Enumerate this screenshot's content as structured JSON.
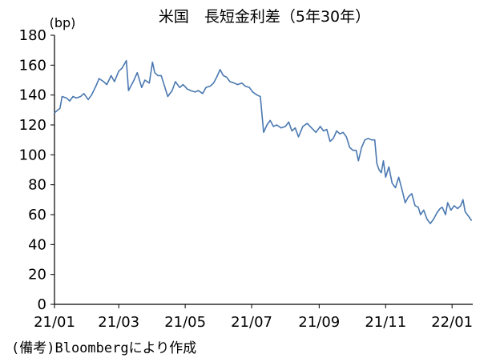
{
  "chart_data": {
    "type": "line",
    "title": "米国　長短金利差（5年30年）",
    "ylabel": "(bp)",
    "note": "(備考)Bloombergにより作成",
    "ylim": [
      0,
      180
    ],
    "y_ticks": [
      0,
      20,
      40,
      60,
      80,
      100,
      120,
      140,
      160,
      180
    ],
    "x_tick_labels": [
      "21/01",
      "21/03",
      "21/05",
      "21/07",
      "21/09",
      "21/11",
      "22/01"
    ],
    "x_ticks": [
      "2021-01-01",
      "2021-03-01",
      "2021-05-01",
      "2021-07-01",
      "2021-09-01",
      "2021-11-01",
      "2022-01-01"
    ],
    "x_range": [
      "2021-01-01",
      "2022-01-20"
    ],
    "grid": false,
    "colors": {
      "series": "#4a78b0",
      "axis": "#000000"
    },
    "series": [
      {
        "values": [
          [
            "2021-01-01",
            128
          ],
          [
            "2021-01-04",
            130
          ],
          [
            "2021-01-06",
            131
          ],
          [
            "2021-01-08",
            139
          ],
          [
            "2021-01-12",
            138
          ],
          [
            "2021-01-15",
            136
          ],
          [
            "2021-01-18",
            139
          ],
          [
            "2021-01-21",
            138
          ],
          [
            "2021-01-25",
            139
          ],
          [
            "2021-01-28",
            141
          ],
          [
            "2021-02-01",
            137
          ],
          [
            "2021-02-04",
            140
          ],
          [
            "2021-02-08",
            146
          ],
          [
            "2021-02-11",
            151
          ],
          [
            "2021-02-15",
            149
          ],
          [
            "2021-02-18",
            147
          ],
          [
            "2021-02-22",
            153
          ],
          [
            "2021-02-25",
            149
          ],
          [
            "2021-03-01",
            156
          ],
          [
            "2021-03-04",
            158
          ],
          [
            "2021-03-08",
            163
          ],
          [
            "2021-03-10",
            143
          ],
          [
            "2021-03-15",
            150
          ],
          [
            "2021-03-18",
            155
          ],
          [
            "2021-03-22",
            145
          ],
          [
            "2021-03-25",
            150
          ],
          [
            "2021-03-29",
            148
          ],
          [
            "2021-04-01",
            162
          ],
          [
            "2021-04-03",
            155
          ],
          [
            "2021-04-06",
            153
          ],
          [
            "2021-04-09",
            153
          ],
          [
            "2021-04-12",
            146
          ],
          [
            "2021-04-15",
            139
          ],
          [
            "2021-04-19",
            143
          ],
          [
            "2021-04-22",
            149
          ],
          [
            "2021-04-26",
            145
          ],
          [
            "2021-04-29",
            147
          ],
          [
            "2021-05-03",
            144
          ],
          [
            "2021-05-06",
            143
          ],
          [
            "2021-05-10",
            142
          ],
          [
            "2021-05-13",
            143
          ],
          [
            "2021-05-17",
            141
          ],
          [
            "2021-05-20",
            145
          ],
          [
            "2021-05-24",
            146
          ],
          [
            "2021-05-27",
            148
          ],
          [
            "2021-05-30",
            152
          ],
          [
            "2021-06-02",
            157
          ],
          [
            "2021-06-05",
            153
          ],
          [
            "2021-06-08",
            152
          ],
          [
            "2021-06-11",
            149
          ],
          [
            "2021-06-15",
            148
          ],
          [
            "2021-06-18",
            147
          ],
          [
            "2021-06-22",
            148
          ],
          [
            "2021-06-25",
            146
          ],
          [
            "2021-06-29",
            145
          ],
          [
            "2021-07-02",
            142
          ],
          [
            "2021-07-06",
            140
          ],
          [
            "2021-07-09",
            139
          ],
          [
            "2021-07-12",
            115
          ],
          [
            "2021-07-15",
            120
          ],
          [
            "2021-07-18",
            123
          ],
          [
            "2021-07-21",
            119
          ],
          [
            "2021-07-24",
            120
          ],
          [
            "2021-07-28",
            118
          ],
          [
            "2021-08-01",
            119
          ],
          [
            "2021-08-04",
            122
          ],
          [
            "2021-08-07",
            116
          ],
          [
            "2021-08-10",
            118
          ],
          [
            "2021-08-13",
            112
          ],
          [
            "2021-08-17",
            119
          ],
          [
            "2021-08-21",
            121
          ],
          [
            "2021-08-25",
            118
          ],
          [
            "2021-08-29",
            115
          ],
          [
            "2021-09-02",
            119
          ],
          [
            "2021-09-05",
            116
          ],
          [
            "2021-09-08",
            117
          ],
          [
            "2021-09-11",
            109
          ],
          [
            "2021-09-14",
            111
          ],
          [
            "2021-09-17",
            116
          ],
          [
            "2021-09-20",
            114
          ],
          [
            "2021-09-23",
            115
          ],
          [
            "2021-09-26",
            112
          ],
          [
            "2021-09-29",
            105
          ],
          [
            "2021-10-02",
            103
          ],
          [
            "2021-10-05",
            103
          ],
          [
            "2021-10-07",
            96
          ],
          [
            "2021-10-10",
            105
          ],
          [
            "2021-10-13",
            110
          ],
          [
            "2021-10-16",
            111
          ],
          [
            "2021-10-19",
            110
          ],
          [
            "2021-10-22",
            110
          ],
          [
            "2021-10-24",
            94
          ],
          [
            "2021-10-26",
            90
          ],
          [
            "2021-10-28",
            88
          ],
          [
            "2021-10-30",
            96
          ],
          [
            "2021-11-01",
            85
          ],
          [
            "2021-11-04",
            92
          ],
          [
            "2021-11-07",
            81
          ],
          [
            "2021-11-10",
            78
          ],
          [
            "2021-11-13",
            85
          ],
          [
            "2021-11-16",
            77
          ],
          [
            "2021-11-19",
            68
          ],
          [
            "2021-11-22",
            72
          ],
          [
            "2021-11-25",
            74
          ],
          [
            "2021-11-28",
            66
          ],
          [
            "2021-12-01",
            65
          ],
          [
            "2021-12-03",
            60
          ],
          [
            "2021-12-06",
            63
          ],
          [
            "2021-12-09",
            57
          ],
          [
            "2021-12-12",
            54
          ],
          [
            "2021-12-15",
            57
          ],
          [
            "2021-12-18",
            61
          ],
          [
            "2021-12-21",
            64
          ],
          [
            "2021-12-23",
            65
          ],
          [
            "2021-12-26",
            60
          ],
          [
            "2021-12-28",
            68
          ],
          [
            "2021-12-31",
            63
          ],
          [
            "2022-01-03",
            66
          ],
          [
            "2022-01-06",
            64
          ],
          [
            "2022-01-09",
            66
          ],
          [
            "2022-01-11",
            70
          ],
          [
            "2022-01-13",
            62
          ],
          [
            "2022-01-16",
            59
          ],
          [
            "2022-01-19",
            56
          ]
        ]
      }
    ]
  }
}
